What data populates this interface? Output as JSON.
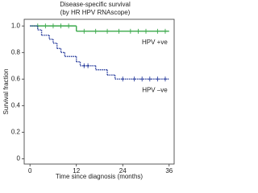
{
  "chart_data": {
    "type": "survival-step",
    "title": "Disease-specific survival",
    "subtitle": "(by HR HPV RNAscope)",
    "x_label": "Time since diagnosis (months)",
    "y_label": "Survival fraction",
    "xlim": [
      -1.5,
      37.3
    ],
    "ylim": [
      -0.04,
      1.05
    ],
    "xticks": [
      0,
      12,
      24,
      36
    ],
    "yticks": [
      0,
      0.2,
      0.4,
      0.6,
      0.8,
      {
        "value": 1,
        "label": "1.0"
      }
    ],
    "series": [
      {
        "name": "HPV +ve",
        "color": "#3aa84a",
        "dashed": false,
        "x": [
          0,
          12,
          36
        ],
        "values": [
          1.0,
          0.96,
          0.96
        ],
        "censored_x": [
          2,
          4,
          6,
          8,
          10,
          14,
          17,
          20,
          23,
          26,
          28,
          30,
          33,
          35
        ]
      },
      {
        "name": "HPV –ve",
        "color": "#2b3f9e",
        "dashed": true,
        "x": [
          0,
          2,
          3,
          5,
          6,
          7,
          8,
          9,
          12,
          13,
          17,
          20,
          22,
          36
        ],
        "values": [
          1.0,
          0.97,
          0.93,
          0.9,
          0.87,
          0.83,
          0.8,
          0.77,
          0.73,
          0.7,
          0.67,
          0.63,
          0.6,
          0.6
        ],
        "censored_x": [
          14,
          15,
          24,
          27,
          29,
          31,
          33,
          35
        ]
      }
    ]
  }
}
